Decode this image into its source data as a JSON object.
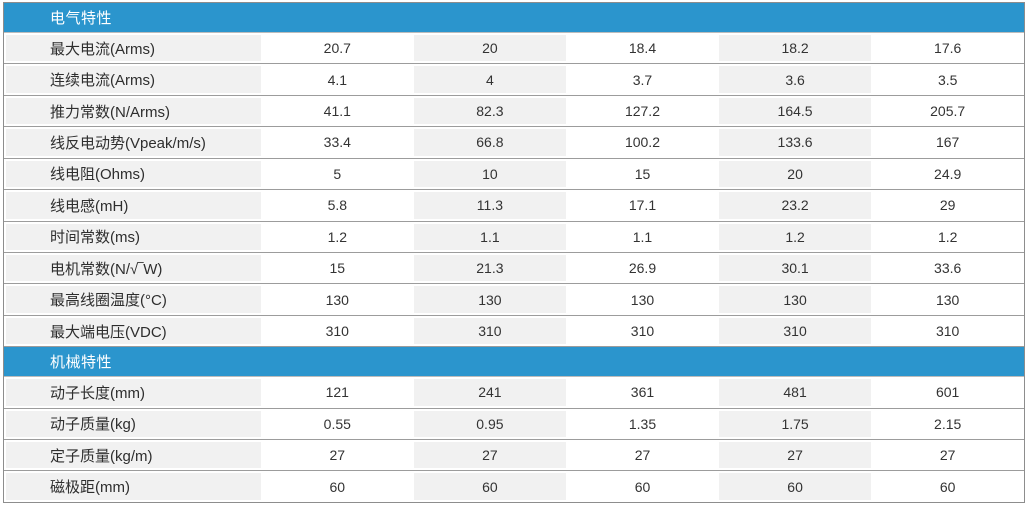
{
  "table": {
    "colors": {
      "header_bg": "#2B95CD",
      "header_text": "#FFFFFF",
      "stripe_bg": "#F1F1F1",
      "row_bg": "#FFFFFF",
      "border": "#9C9C9C"
    },
    "sections": [
      {
        "id": "electrical",
        "title": "电气特性",
        "rows": [
          {
            "label": "最大电流(Arms)",
            "values": [
              "20.7",
              "20",
              "18.4",
              "18.2",
              "17.6"
            ]
          },
          {
            "label": "连续电流(Arms)",
            "values": [
              "4.1",
              "4",
              "3.7",
              "3.6",
              "3.5"
            ]
          },
          {
            "label": "推力常数(N/Arms)",
            "values": [
              "41.1",
              "82.3",
              "127.2",
              "164.5",
              "205.7"
            ]
          },
          {
            "label": "线反电动势(Vpeak/m/s)",
            "values": [
              "33.4",
              "66.8",
              "100.2",
              "133.6",
              "167"
            ]
          },
          {
            "label": "线电阻(Ohms)",
            "values": [
              "5",
              "10",
              "15",
              "20",
              "24.9"
            ]
          },
          {
            "label": "线电感(mH)",
            "values": [
              "5.8",
              "11.3",
              "17.1",
              "23.2",
              "29"
            ]
          },
          {
            "label": "时间常数(ms)",
            "values": [
              "1.2",
              "1.1",
              "1.1",
              "1.2",
              "1.2"
            ]
          },
          {
            "label": "电机常数(N/√‾W)",
            "values": [
              "15",
              "21.3",
              "26.9",
              "30.1",
              "33.6"
            ]
          },
          {
            "label": "最高线圈温度(°C)",
            "values": [
              "130",
              "130",
              "130",
              "130",
              "130"
            ]
          },
          {
            "label": "最大端电压(VDC)",
            "values": [
              "310",
              "310",
              "310",
              "310",
              "310"
            ]
          }
        ]
      },
      {
        "id": "mechanical",
        "title": "机械特性",
        "rows": [
          {
            "label": "动子长度(mm)",
            "values": [
              "121",
              "241",
              "361",
              "481",
              "601"
            ]
          },
          {
            "label": "动子质量(kg)",
            "values": [
              "0.55",
              "0.95",
              "1.35",
              "1.75",
              "2.15"
            ]
          },
          {
            "label": "定子质量(kg/m)",
            "values": [
              "27",
              "27",
              "27",
              "27",
              "27"
            ]
          },
          {
            "label": "磁极距(mm)",
            "values": [
              "60",
              "60",
              "60",
              "60",
              "60"
            ]
          }
        ]
      }
    ]
  }
}
